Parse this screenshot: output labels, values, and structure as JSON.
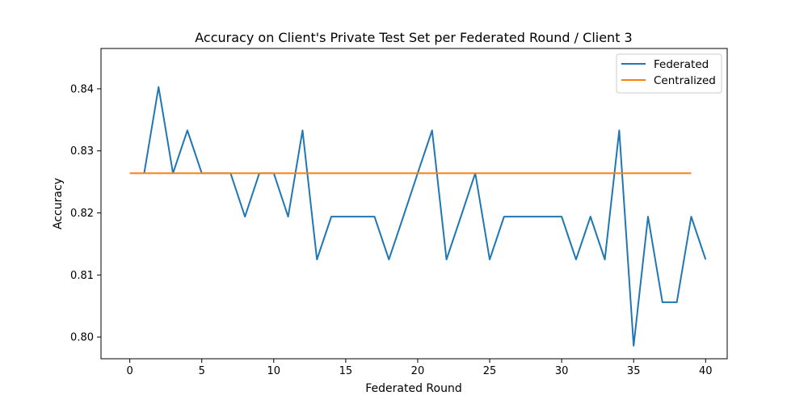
{
  "chart_data": {
    "type": "line",
    "title": "Accuracy on Client's Private Test Set per Federated Round / Client 3",
    "xlabel": "Federated Round",
    "ylabel": "Accuracy",
    "xlim": [
      -2,
      41.5
    ],
    "ylim": [
      0.7965,
      0.8465
    ],
    "xticks": [
      0,
      5,
      10,
      15,
      20,
      25,
      30,
      35,
      40
    ],
    "yticks": [
      0.8,
      0.81,
      0.82,
      0.83,
      0.84
    ],
    "xtick_labels": [
      "0",
      "5",
      "10",
      "15",
      "20",
      "25",
      "30",
      "35",
      "40"
    ],
    "ytick_labels": [
      "0.80",
      "0.81",
      "0.82",
      "0.83",
      "0.84"
    ],
    "grid": false,
    "legend_position": "top-right",
    "series": [
      {
        "name": "Federated",
        "color": "#1f77b4",
        "x": [
          1,
          2,
          3,
          4,
          5,
          6,
          7,
          8,
          9,
          10,
          11,
          12,
          13,
          14,
          15,
          16,
          17,
          18,
          19,
          20,
          21,
          22,
          23,
          24,
          25,
          26,
          27,
          28,
          29,
          30,
          31,
          32,
          33,
          34,
          35,
          36,
          37,
          38,
          39,
          40
        ],
        "y": [
          0.8264,
          0.8403,
          0.8264,
          0.8333,
          0.8264,
          0.8264,
          0.8264,
          0.8194,
          0.8264,
          0.8264,
          0.8194,
          0.8333,
          0.8125,
          0.8194,
          0.8194,
          0.8194,
          0.8194,
          0.8125,
          0.8194,
          0.8264,
          0.8333,
          0.8125,
          0.8194,
          0.8264,
          0.8125,
          0.8194,
          0.8194,
          0.8194,
          0.8194,
          0.8194,
          0.8125,
          0.8194,
          0.8125,
          0.8333,
          0.7986,
          0.8194,
          0.8056,
          0.8056,
          0.8194,
          0.8125
        ]
      },
      {
        "name": "Centralized",
        "color": "#ff7f0e",
        "x": [
          0,
          39
        ],
        "y": [
          0.8264,
          0.8264
        ]
      }
    ]
  }
}
